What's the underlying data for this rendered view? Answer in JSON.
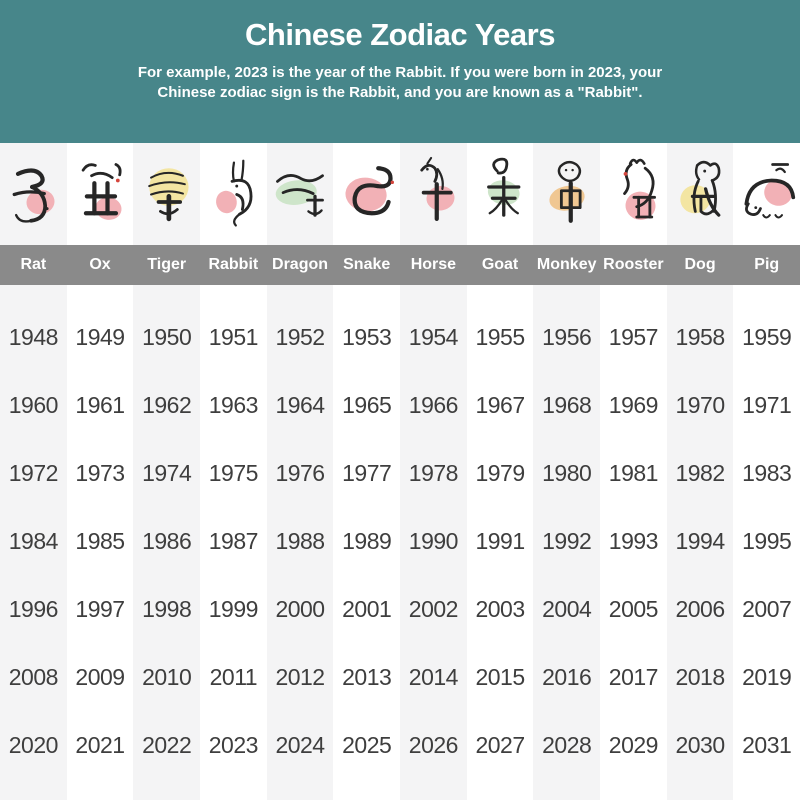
{
  "header": {
    "title": "Chinese Zodiac Years",
    "subtitle_line1": "For example, 2023 is the year of the Rabbit. If you were born in 2023, your",
    "subtitle_line2": "Chinese zodiac sign is the Rabbit, and you are known as a \"Rabbit\"."
  },
  "colors": {
    "header_bg": "#47868a",
    "header_text": "#ffffff",
    "name_bar_bg": "#8a8a8a",
    "name_text": "#ffffff",
    "stripe_odd": "#f4f4f5",
    "stripe_even": "#ffffff",
    "year_text": "#3e3e3e",
    "ink": "#262626",
    "accent_red": "#d5453c",
    "blob_pink": "#f2b1b6",
    "blob_yellow": "#f3e5a2",
    "blob_green": "#cee5ca",
    "blob_orange": "#f0c792"
  },
  "zodiac": {
    "columns": [
      {
        "name": "Rat",
        "glyph": "子",
        "icon": "rat-icon",
        "blob": "pink",
        "years": [
          1948,
          1960,
          1972,
          1984,
          1996,
          2008,
          2020
        ]
      },
      {
        "name": "Ox",
        "glyph": "丑",
        "icon": "ox-icon",
        "blob": "pink",
        "years": [
          1949,
          1961,
          1973,
          1985,
          1997,
          2009,
          2021
        ]
      },
      {
        "name": "Tiger",
        "glyph": "寅",
        "icon": "tiger-icon",
        "blob": "yellow",
        "years": [
          1950,
          1962,
          1974,
          1986,
          1998,
          2010,
          2022
        ]
      },
      {
        "name": "Rabbit",
        "glyph": "卯",
        "icon": "rabbit-icon",
        "blob": "pink",
        "years": [
          1951,
          1963,
          1975,
          1987,
          1999,
          2011,
          2023
        ]
      },
      {
        "name": "Dragon",
        "glyph": "辰",
        "icon": "dragon-icon",
        "blob": "green",
        "years": [
          1952,
          1964,
          1976,
          1988,
          2000,
          2012,
          2024
        ]
      },
      {
        "name": "Snake",
        "glyph": "巳",
        "icon": "snake-icon",
        "blob": "pink",
        "years": [
          1953,
          1965,
          1977,
          1989,
          2001,
          2013,
          2025
        ]
      },
      {
        "name": "Horse",
        "glyph": "午",
        "icon": "horse-icon",
        "blob": "pink",
        "years": [
          1954,
          1966,
          1978,
          1990,
          2002,
          2014,
          2026
        ]
      },
      {
        "name": "Goat",
        "glyph": "未",
        "icon": "goat-icon",
        "blob": "green",
        "years": [
          1955,
          1967,
          1979,
          1991,
          2003,
          2015,
          2027
        ]
      },
      {
        "name": "Monkey",
        "glyph": "申",
        "icon": "monkey-icon",
        "blob": "orange",
        "years": [
          1956,
          1968,
          1980,
          1992,
          2004,
          2016,
          2028
        ]
      },
      {
        "name": "Rooster",
        "glyph": "酉",
        "icon": "rooster-icon",
        "blob": "pink",
        "years": [
          1957,
          1969,
          1981,
          1993,
          2005,
          2017,
          2029
        ]
      },
      {
        "name": "Dog",
        "glyph": "戌",
        "icon": "dog-icon",
        "blob": "yellow",
        "years": [
          1958,
          1970,
          1982,
          1994,
          2006,
          2018,
          2030
        ]
      },
      {
        "name": "Pig",
        "glyph": "亥",
        "icon": "pig-icon",
        "blob": "pink",
        "years": [
          1959,
          1971,
          1983,
          1995,
          2007,
          2019,
          2031
        ]
      }
    ]
  },
  "chart_data": {
    "type": "table",
    "title": "Chinese Zodiac Years",
    "columns": [
      "Rat",
      "Ox",
      "Tiger",
      "Rabbit",
      "Dragon",
      "Snake",
      "Horse",
      "Goat",
      "Monkey",
      "Rooster",
      "Dog",
      "Pig"
    ],
    "rows": [
      [
        1948,
        1949,
        1950,
        1951,
        1952,
        1953,
        1954,
        1955,
        1956,
        1957,
        1958,
        1959
      ],
      [
        1960,
        1961,
        1962,
        1963,
        1964,
        1965,
        1966,
        1967,
        1968,
        1969,
        1970,
        1971
      ],
      [
        1972,
        1973,
        1974,
        1975,
        1976,
        1977,
        1978,
        1979,
        1980,
        1981,
        1982,
        1983
      ],
      [
        1984,
        1985,
        1986,
        1987,
        1988,
        1989,
        1990,
        1991,
        1992,
        1993,
        1994,
        1995
      ],
      [
        1996,
        1997,
        1998,
        1999,
        2000,
        2001,
        2002,
        2003,
        2004,
        2005,
        2006,
        2007
      ],
      [
        2008,
        2009,
        2010,
        2011,
        2012,
        2013,
        2014,
        2015,
        2016,
        2017,
        2018,
        2019
      ],
      [
        2020,
        2021,
        2022,
        2023,
        2024,
        2025,
        2026,
        2027,
        2028,
        2029,
        2030,
        2031
      ]
    ]
  }
}
